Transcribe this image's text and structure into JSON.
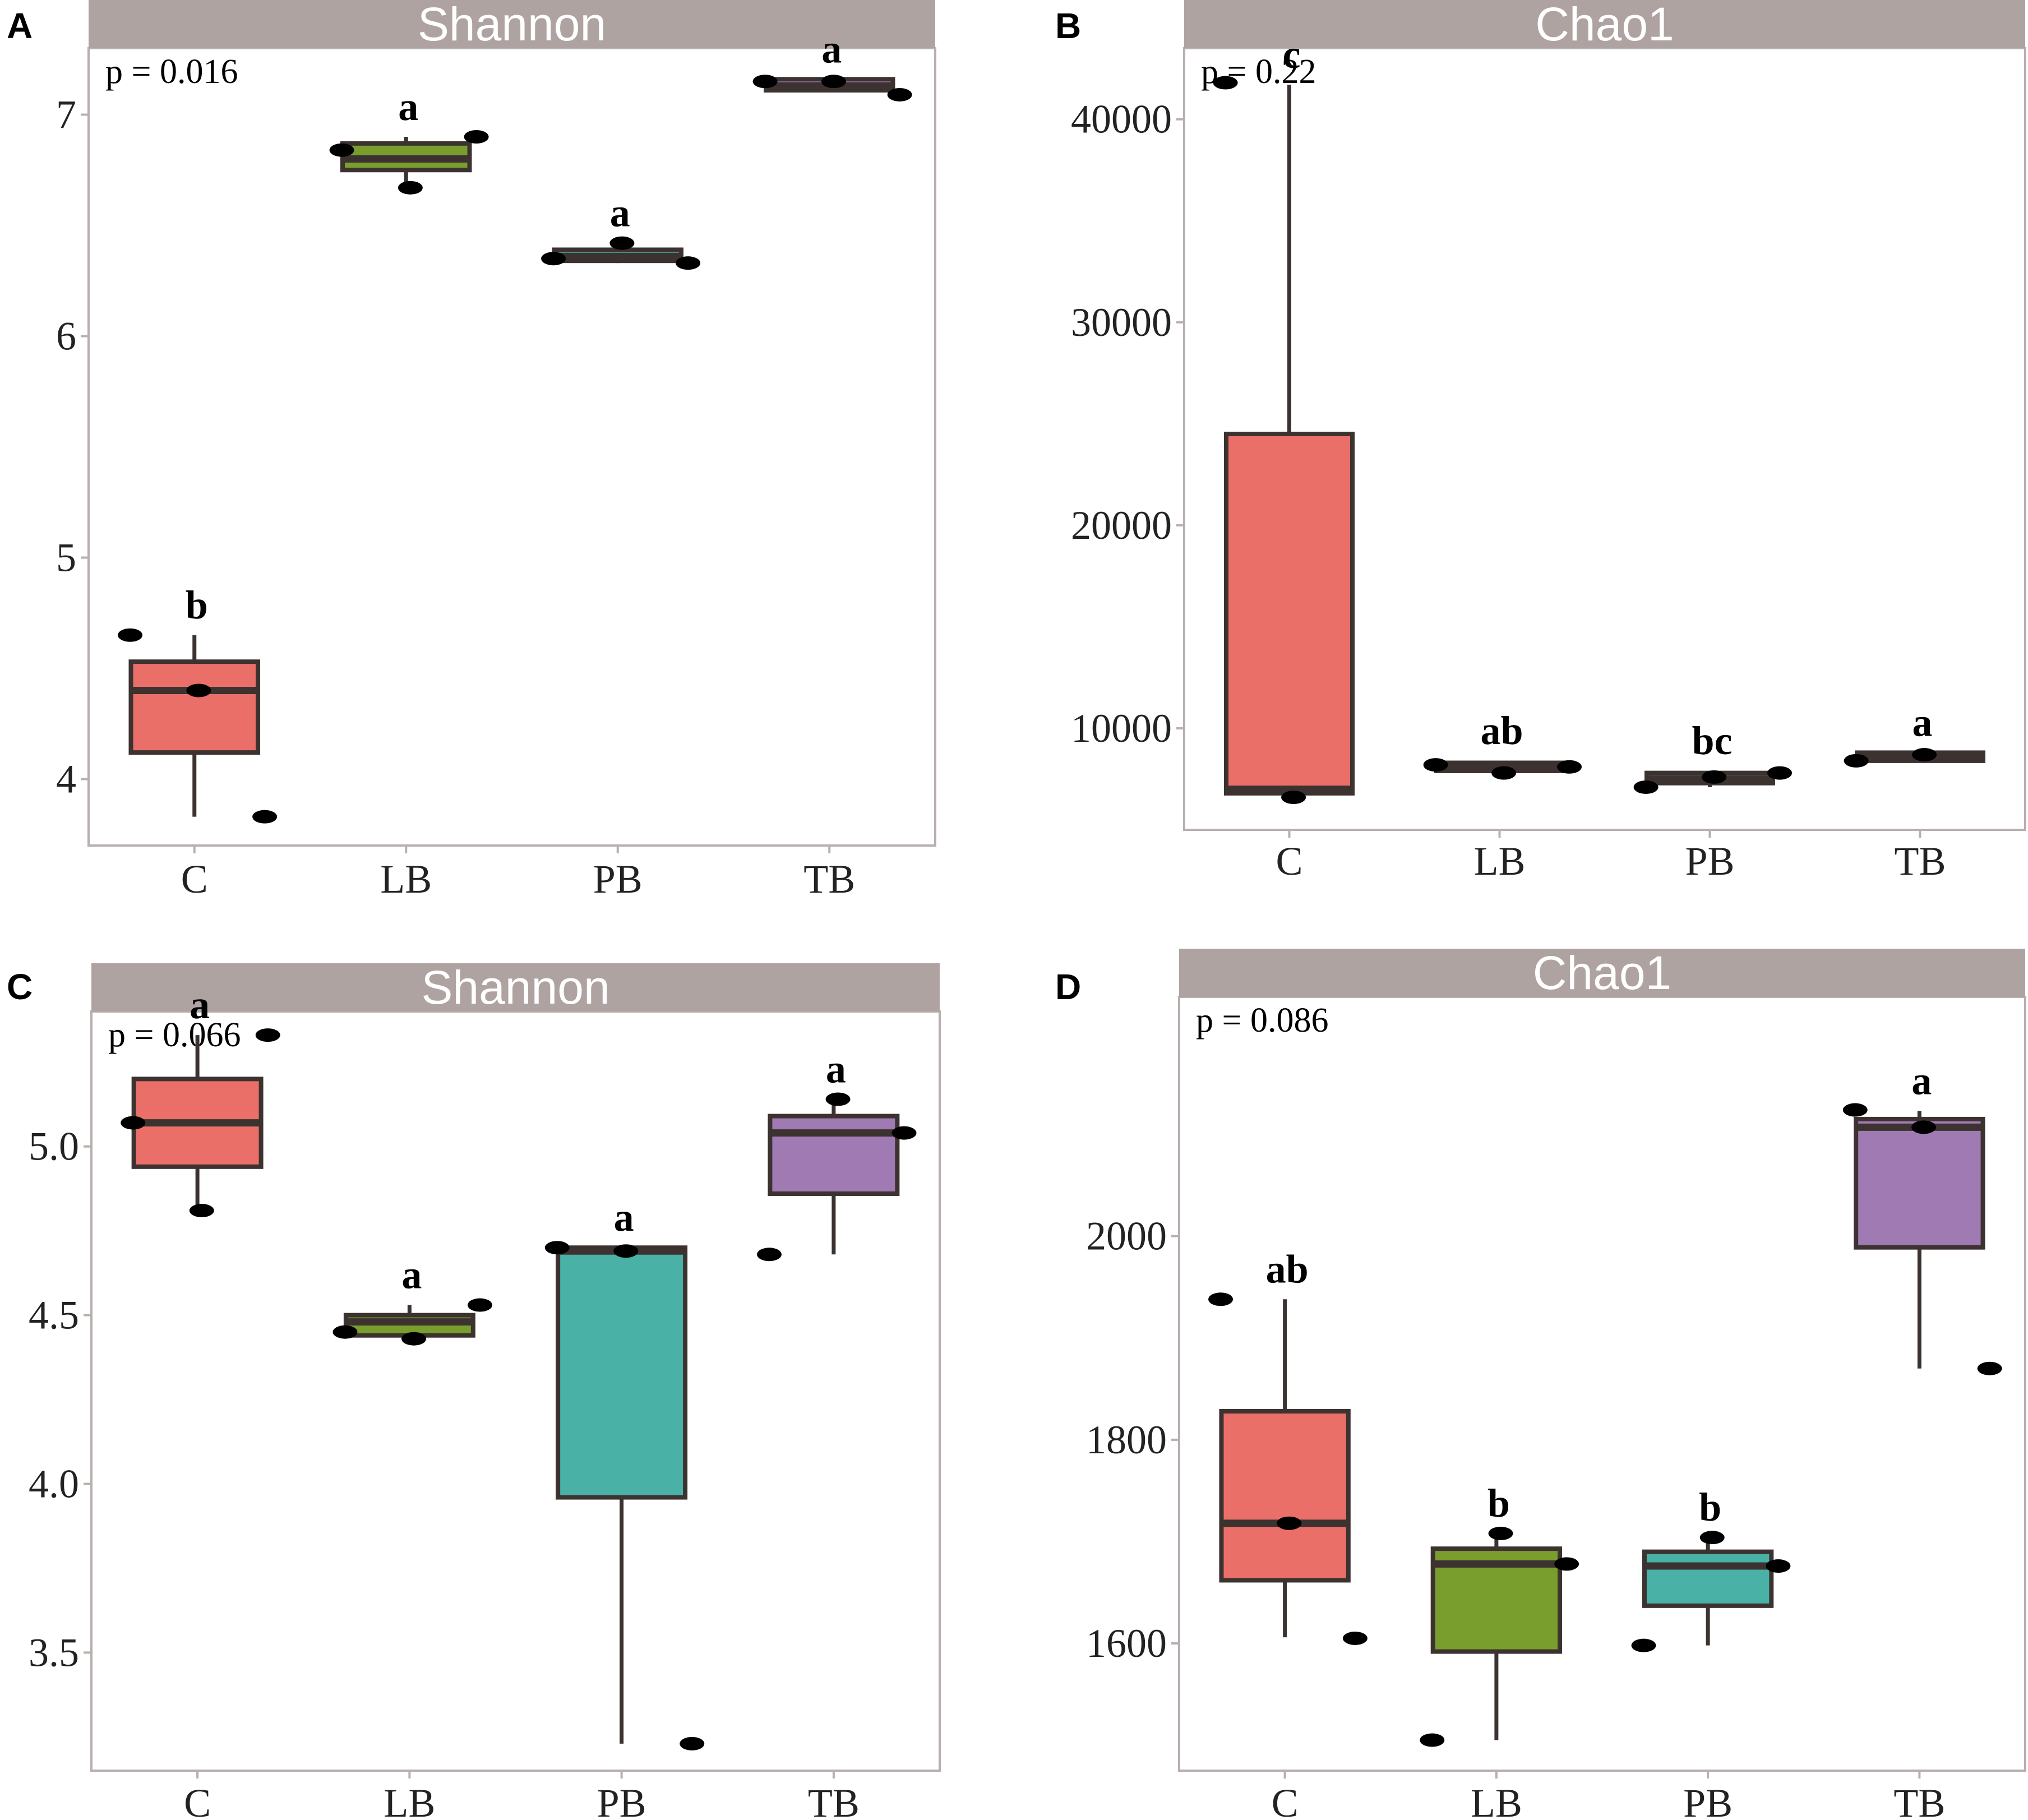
{
  "groups": [
    "C",
    "LB",
    "PB",
    "TB"
  ],
  "colors": {
    "C": "#EB6F69",
    "LB": "#7A9E2E",
    "PB": "#49B1A6",
    "TB": "#9F7AB3",
    "strip": "#AFA3A1",
    "frame": "#B8AFAE",
    "box_line": "#3C3230",
    "point": "#000000"
  },
  "chart_data": [
    {
      "type": "box",
      "panel": "A",
      "title": "Shannon",
      "p_value": "p = 0.016",
      "ylim": [
        3.7,
        7.3
      ],
      "yticks": [
        4,
        5,
        6,
        7
      ],
      "ytick_labels": [
        "4",
        "5",
        "6",
        "7"
      ],
      "categories": [
        "C",
        "LB",
        "PB",
        "TB"
      ],
      "boxes": [
        {
          "group": "C",
          "min": 3.83,
          "q1": 4.12,
          "median": 4.4,
          "q3": 4.53,
          "max": 4.65,
          "letter": "b",
          "points": [
            4.65,
            4.4,
            3.83
          ]
        },
        {
          "group": "LB",
          "min": 6.67,
          "q1": 6.75,
          "median": 6.8,
          "q3": 6.87,
          "max": 6.9,
          "letter": "a",
          "points": [
            6.84,
            6.67,
            6.9
          ]
        },
        {
          "group": "PB",
          "min": 6.33,
          "q1": 6.34,
          "median": 6.36,
          "q3": 6.39,
          "max": 6.42,
          "letter": "a",
          "points": [
            6.35,
            6.42,
            6.33
          ]
        },
        {
          "group": "TB",
          "min": 7.1,
          "q1": 7.11,
          "median": 7.13,
          "q3": 7.16,
          "max": 7.16,
          "letter": "a",
          "points": [
            7.15,
            7.15,
            7.09
          ]
        }
      ]
    },
    {
      "type": "box",
      "panel": "B",
      "title": "Chao1",
      "p_value": "p = 0.22",
      "ylim": [
        5000,
        43500
      ],
      "yticks": [
        10000,
        20000,
        30000,
        40000
      ],
      "ytick_labels": [
        "10000",
        "20000",
        "30000",
        "40000"
      ],
      "categories": [
        "C",
        "LB",
        "PB",
        "TB"
      ],
      "boxes": [
        {
          "group": "C",
          "min": 6600,
          "q1": 6800,
          "median": 7000,
          "q3": 24500,
          "max": 41700,
          "letter": "c",
          "points": [
            41800,
            6600
          ]
        },
        {
          "group": "LB",
          "min": 7800,
          "q1": 7900,
          "median": 8100,
          "q3": 8300,
          "max": 8400,
          "letter": "ab",
          "points": [
            8200,
            7800,
            8100
          ]
        },
        {
          "group": "PB",
          "min": 7100,
          "q1": 7300,
          "median": 7500,
          "q3": 7800,
          "max": 7900,
          "letter": "bc",
          "points": [
            7100,
            7600,
            7800
          ]
        },
        {
          "group": "TB",
          "min": 8400,
          "q1": 8400,
          "median": 8600,
          "q3": 8800,
          "max": 8800,
          "letter": "a",
          "points": [
            8400,
            8700
          ]
        }
      ]
    },
    {
      "type": "box",
      "panel": "C",
      "title": "Shannon",
      "p_value": "p = 0.066",
      "ylim": [
        3.15,
        5.4
      ],
      "yticks": [
        3.5,
        4.0,
        4.5,
        5.0
      ],
      "ytick_labels": [
        "3.5",
        "4.0",
        "4.5",
        "5.0"
      ],
      "categories": [
        "C",
        "LB",
        "PB",
        "TB"
      ],
      "boxes": [
        {
          "group": "C",
          "min": 4.8,
          "q1": 4.94,
          "median": 5.07,
          "q3": 5.2,
          "max": 5.33,
          "letter": "a",
          "points": [
            5.07,
            4.81,
            5.33
          ]
        },
        {
          "group": "LB",
          "min": 4.44,
          "q1": 4.44,
          "median": 4.48,
          "q3": 4.5,
          "max": 4.53,
          "letter": "a",
          "points": [
            4.45,
            4.43,
            4.53
          ]
        },
        {
          "group": "PB",
          "min": 3.23,
          "q1": 3.96,
          "median": 4.69,
          "q3": 4.7,
          "max": 4.7,
          "letter": "a",
          "points": [
            4.7,
            4.69,
            3.23
          ]
        },
        {
          "group": "TB",
          "min": 4.68,
          "q1": 4.86,
          "median": 5.04,
          "q3": 5.09,
          "max": 5.14,
          "letter": "a",
          "points": [
            4.68,
            5.14,
            5.04
          ]
        }
      ]
    },
    {
      "type": "box",
      "panel": "D",
      "title": "Chao1",
      "p_value": "p = 0.086",
      "ylim": [
        1475,
        2235
      ],
      "yticks": [
        1600,
        1800,
        2000
      ],
      "ytick_labels": [
        "1600",
        "1800",
        "2000"
      ],
      "categories": [
        "C",
        "LB",
        "PB",
        "TB"
      ],
      "boxes": [
        {
          "group": "C",
          "min": 1606,
          "q1": 1662,
          "median": 1718,
          "q3": 1828,
          "max": 1938,
          "letter": "ab",
          "points": [
            1938,
            1718,
            1605
          ]
        },
        {
          "group": "LB",
          "min": 1505,
          "q1": 1592,
          "median": 1678,
          "q3": 1693,
          "max": 1708,
          "letter": "b",
          "points": [
            1505,
            1708,
            1678
          ]
        },
        {
          "group": "PB",
          "min": 1598,
          "q1": 1637,
          "median": 1676,
          "q3": 1690,
          "max": 1704,
          "letter": "b",
          "points": [
            1598,
            1704,
            1676
          ]
        },
        {
          "group": "TB",
          "min": 1870,
          "q1": 1989,
          "median": 2107,
          "q3": 2115,
          "max": 2123,
          "letter": "a",
          "points": [
            2124,
            2107,
            1870
          ]
        }
      ]
    }
  ]
}
